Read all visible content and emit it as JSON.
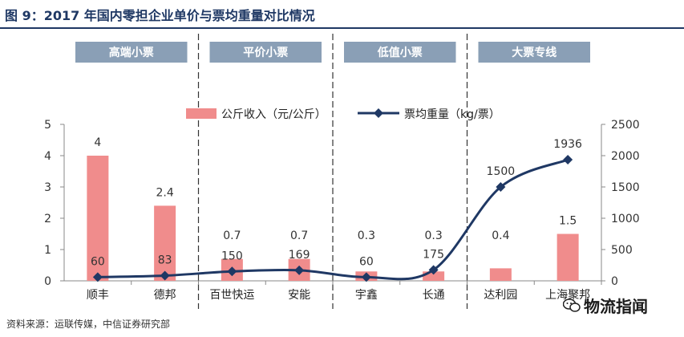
{
  "figure_title": "图 9：2017 年国内零担企业单价与票均重量对比情况",
  "source_text": "资料来源：运联传媒，中信证券研究部",
  "watermark_text": "物流指闻",
  "colors": {
    "bar": "#f08c8c",
    "line": "#1f3864",
    "title": "#1f3864",
    "group_box": "#8a9fb6"
  },
  "chart_data": {
    "type": "bar",
    "title": "",
    "groups": [
      {
        "label": "高端小票",
        "categories": [
          "顺丰",
          "德邦"
        ]
      },
      {
        "label": "平价小票",
        "categories": [
          "百世快运",
          "安能"
        ]
      },
      {
        "label": "低值小票",
        "categories": [
          "宇鑫",
          "长通"
        ]
      },
      {
        "label": "大票专线",
        "categories": [
          "达利园",
          "上海聚邦"
        ]
      }
    ],
    "categories": [
      "顺丰",
      "德邦",
      "百世快运",
      "安能",
      "宇鑫",
      "长通",
      "达利园",
      "上海聚邦"
    ],
    "series": [
      {
        "name": "公斤收入（元/公斤）",
        "type": "bar",
        "axis": "left",
        "values": [
          4,
          2.4,
          0.7,
          0.7,
          0.3,
          0.3,
          0.4,
          1.5
        ],
        "labels": [
          "4",
          "2.4",
          "0.7",
          "0.7",
          "0.3",
          "0.3",
          "0.4",
          "1.5"
        ]
      },
      {
        "name": "票均重量（kg/票）",
        "type": "line",
        "axis": "right",
        "values": [
          60,
          83,
          150,
          169,
          60,
          175,
          1500,
          1936
        ],
        "labels": [
          "60",
          "83",
          "150",
          "169",
          "60",
          "175",
          "1500",
          "1936"
        ]
      }
    ],
    "y_left": {
      "min": 0,
      "max": 5,
      "ticks": [
        "0",
        "1",
        "2",
        "3",
        "4",
        "5"
      ]
    },
    "y_right": {
      "min": 0,
      "max": 2500,
      "ticks": [
        "0",
        "500",
        "1000",
        "1500",
        "2000",
        "2500"
      ]
    },
    "legend_position": "top",
    "grid": false
  }
}
